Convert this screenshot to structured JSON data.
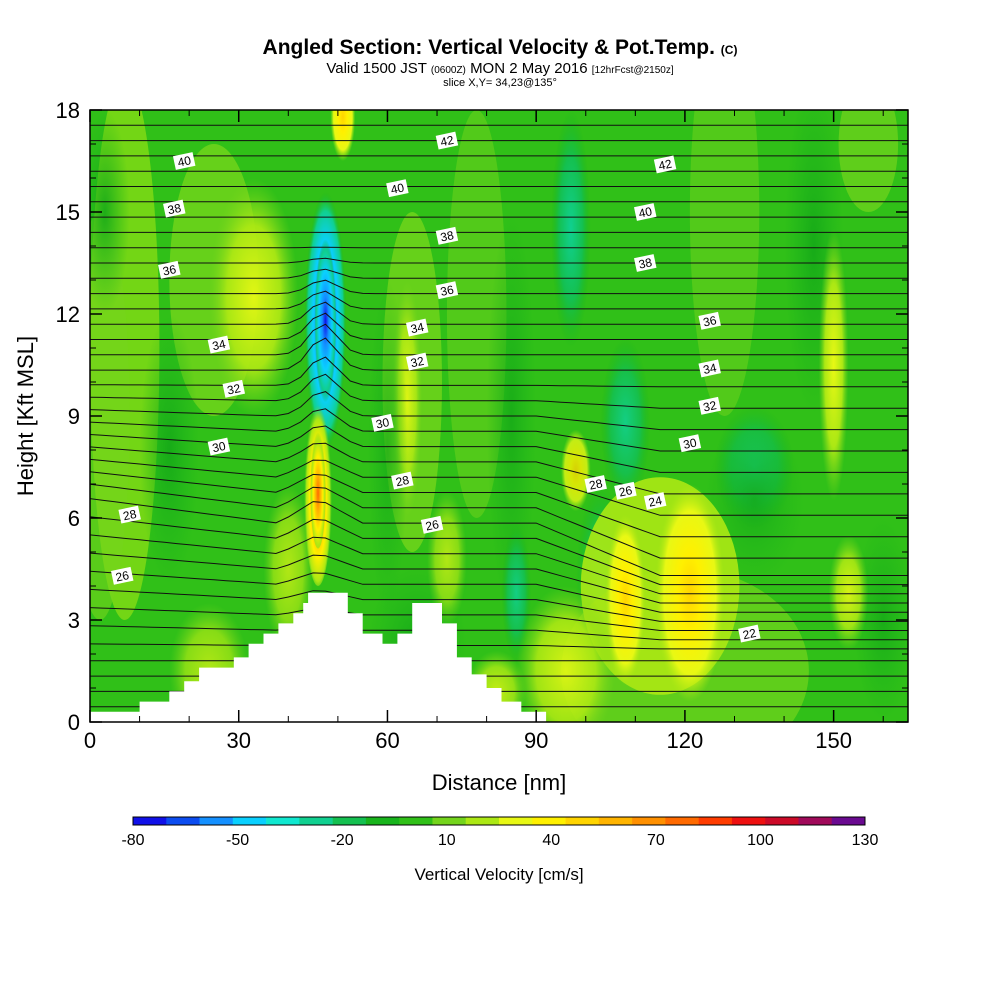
{
  "title": {
    "main": "Angled Section: Vertical Velocity & Pot.Temp.",
    "main_suffix": "(C)",
    "valid_prefix": "Valid 1500 JST",
    "valid_zone": "(0600Z)",
    "valid_date": "MON 2 May 2016",
    "valid_fcst": "[12hrFcst@2150z]",
    "slice": "slice X,Y= 34,23@135°"
  },
  "chart_data": {
    "type": "heatmap",
    "xlabel": "Distance [nm]",
    "ylabel": "Height [Kft MSL]",
    "xlim": [
      0,
      165
    ],
    "ylim": [
      0,
      18
    ],
    "x_ticks": [
      "0",
      "30",
      "60",
      "90",
      "120",
      "150"
    ],
    "y_ticks": [
      "0",
      "3",
      "6",
      "9",
      "12",
      "15",
      "18"
    ],
    "colorbar": {
      "label": "Vertical Velocity [cm/s]",
      "tick_labels": [
        "-80",
        "-50",
        "-20",
        "10",
        "40",
        "70",
        "100",
        "130"
      ],
      "levels": [
        -80,
        -70,
        -60,
        -50,
        -40,
        -30,
        -20,
        -10,
        0,
        10,
        20,
        30,
        40,
        50,
        60,
        70,
        80,
        90,
        100,
        110,
        120,
        130
      ],
      "colors": [
        "#1010e8",
        "#0c4cf0",
        "#1490ff",
        "#0ad0ff",
        "#10e8d0",
        "#10d090",
        "#14c050",
        "#18b41c",
        "#30c018",
        "#74d41c",
        "#ace814",
        "#e8f814",
        "#fff000",
        "#ffd400",
        "#ffb400",
        "#ff9000",
        "#ff6a00",
        "#ff3c00",
        "#ee1010",
        "#cc0a28",
        "#a00a5a",
        "#6a0a90"
      ]
    },
    "velocity_features": [
      {
        "x": 47,
        "y": 11.8,
        "value": -80
      },
      {
        "x": 46,
        "y": 6.8,
        "value": 60
      },
      {
        "x": 51,
        "y": 17.7,
        "value": 40
      },
      {
        "x": 121,
        "y": 3.8,
        "value": 40
      },
      {
        "x": 108,
        "y": 3.6,
        "value": 40
      },
      {
        "x": 150,
        "y": 10.2,
        "value": 20
      },
      {
        "x": 97,
        "y": 15,
        "value": -20
      },
      {
        "x": 110,
        "y": 8.5,
        "value": -20
      }
    ],
    "contour_labels": [
      {
        "text": "40",
        "x": 19,
        "y": 16.5
      },
      {
        "text": "38",
        "x": 17,
        "y": 15.1
      },
      {
        "text": "36",
        "x": 16,
        "y": 13.3
      },
      {
        "text": "34",
        "x": 26,
        "y": 11.1
      },
      {
        "text": "32",
        "x": 29,
        "y": 9.8
      },
      {
        "text": "30",
        "x": 26,
        "y": 8.1
      },
      {
        "text": "28",
        "x": 8,
        "y": 6.1
      },
      {
        "text": "26",
        "x": 6.5,
        "y": 4.3
      },
      {
        "text": "42",
        "x": 72,
        "y": 17.1
      },
      {
        "text": "40",
        "x": 62,
        "y": 15.7
      },
      {
        "text": "38",
        "x": 72,
        "y": 14.3
      },
      {
        "text": "36",
        "x": 72,
        "y": 12.7
      },
      {
        "text": "34",
        "x": 66,
        "y": 11.6
      },
      {
        "text": "32",
        "x": 66,
        "y": 10.6
      },
      {
        "text": "30",
        "x": 59,
        "y": 8.8
      },
      {
        "text": "28",
        "x": 63,
        "y": 7.1
      },
      {
        "text": "26",
        "x": 69,
        "y": 5.8
      },
      {
        "text": "42",
        "x": 116,
        "y": 16.4
      },
      {
        "text": "40",
        "x": 112,
        "y": 15
      },
      {
        "text": "38",
        "x": 112,
        "y": 13.5
      },
      {
        "text": "36",
        "x": 125,
        "y": 11.8
      },
      {
        "text": "34",
        "x": 125,
        "y": 10.4
      },
      {
        "text": "32",
        "x": 125,
        "y": 9.3
      },
      {
        "text": "30",
        "x": 121,
        "y": 8.2
      },
      {
        "text": "28",
        "x": 102,
        "y": 7
      },
      {
        "text": "26",
        "x": 108,
        "y": 6.8
      },
      {
        "text": "24",
        "x": 114,
        "y": 6.5
      },
      {
        "text": "22",
        "x": 133,
        "y": 2.6
      }
    ]
  }
}
